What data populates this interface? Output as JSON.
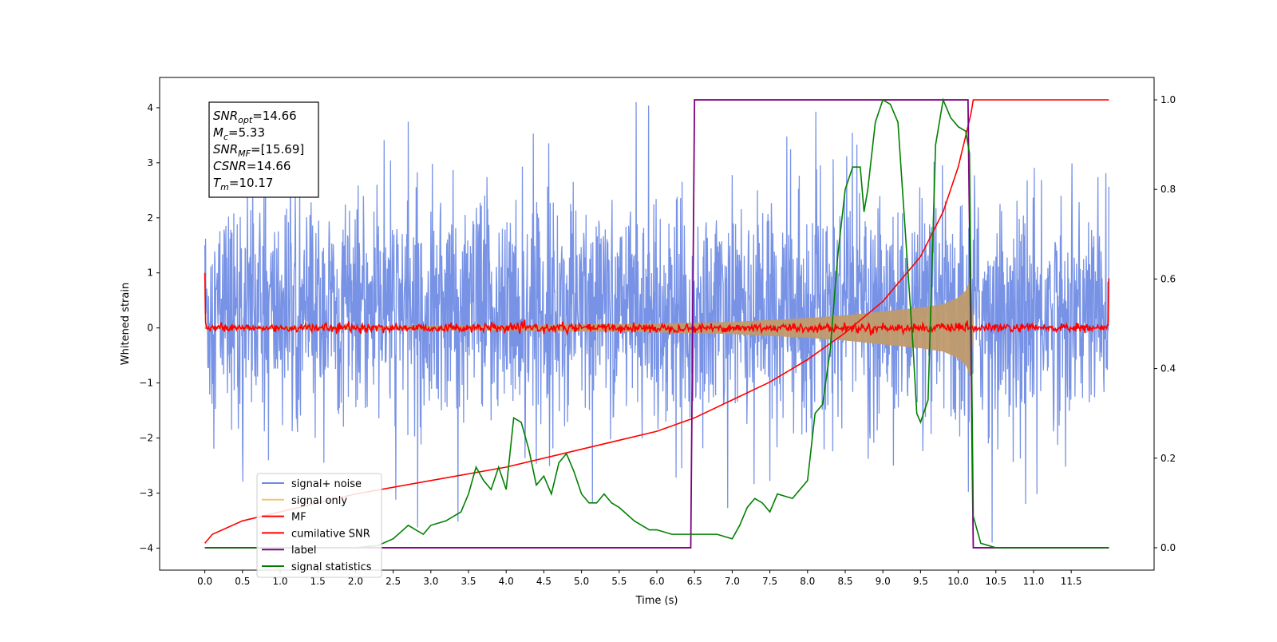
{
  "chart_data": {
    "type": "line",
    "xlabel": "Time (s)",
    "ylabel": "Whitened strain",
    "ylabel_right": "",
    "xlim": [
      -0.6,
      12.6
    ],
    "ylim_left": [
      -4.4,
      4.55
    ],
    "ylim_right": [
      -0.05,
      1.05
    ],
    "x_ticks": [
      "0.0",
      "0.5",
      "1.0",
      "1.5",
      "2.0",
      "2.5",
      "3.0",
      "3.5",
      "4.0",
      "4.5",
      "5.0",
      "5.5",
      "6.0",
      "6.5",
      "7.0",
      "7.5",
      "8.0",
      "8.5",
      "9.0",
      "9.5",
      "10.0",
      "10.5",
      "11.0",
      "11.5"
    ],
    "y_ticks_left": [
      "4",
      "3",
      "2",
      "1",
      "0",
      "−1",
      "−2",
      "−3",
      "−4"
    ],
    "y_ticks_right": [
      "1.0",
      "0.8",
      "0.6",
      "0.4",
      "0.2",
      "0.0"
    ],
    "grid": false,
    "legend_position": "lower-left",
    "info_box": {
      "lines": [
        {
          "sym": "SNR",
          "sub": "opt",
          "val": "=14.66"
        },
        {
          "sym": "M",
          "sub": "c",
          "val": "=5.33"
        },
        {
          "sym": "SNR",
          "sub": "MF",
          "val": "=[15.69]"
        },
        {
          "sym": "CSNR",
          "sub": "",
          "val": "=14.66"
        },
        {
          "sym": "T",
          "sub": "m",
          "val": "=10.17"
        }
      ]
    },
    "series": [
      {
        "name": "signal+ noise",
        "color": "#6c8ae4",
        "axis": "left",
        "description_range": [
          0.0,
          12.0
        ],
        "amplitude_envelope": [
          -3.9,
          4.1
        ]
      },
      {
        "name": "signal only",
        "color": "#f5c36b",
        "axis": "left",
        "envelope_points": [
          [
            0.0,
            0.02
          ],
          [
            2.0,
            0.03
          ],
          [
            4.0,
            0.05
          ],
          [
            6.0,
            0.08
          ],
          [
            7.0,
            0.11
          ],
          [
            8.0,
            0.18
          ],
          [
            8.5,
            0.23
          ],
          [
            9.0,
            0.3
          ],
          [
            9.5,
            0.37
          ],
          [
            9.8,
            0.43
          ],
          [
            10.0,
            0.55
          ],
          [
            10.1,
            0.68
          ],
          [
            10.17,
            0.9
          ],
          [
            10.2,
            0.0
          ]
        ]
      },
      {
        "name": "MF",
        "color": "#ff0000",
        "axis": "left",
        "description_range": [
          0.0,
          12.0
        ],
        "noise_level": 0.08
      },
      {
        "name": "cumilative SNR",
        "color": "#ff0000",
        "axis": "right",
        "points": [
          [
            0.0,
            0.01
          ],
          [
            0.1,
            0.03
          ],
          [
            0.5,
            0.06
          ],
          [
            1.0,
            0.08
          ],
          [
            2.0,
            0.12
          ],
          [
            3.0,
            0.15
          ],
          [
            4.0,
            0.18
          ],
          [
            5.0,
            0.22
          ],
          [
            6.0,
            0.26
          ],
          [
            6.5,
            0.29
          ],
          [
            7.0,
            0.33
          ],
          [
            7.5,
            0.37
          ],
          [
            8.0,
            0.42
          ],
          [
            8.5,
            0.48
          ],
          [
            9.0,
            0.55
          ],
          [
            9.5,
            0.65
          ],
          [
            9.8,
            0.75
          ],
          [
            10.0,
            0.85
          ],
          [
            10.1,
            0.92
          ],
          [
            10.17,
            0.97
          ],
          [
            10.2,
            1.0
          ],
          [
            12.0,
            1.0
          ]
        ]
      },
      {
        "name": "label",
        "color": "#800080",
        "axis": "right",
        "points": [
          [
            0.0,
            0.0
          ],
          [
            6.45,
            0.0
          ],
          [
            6.5,
            1.0
          ],
          [
            10.13,
            1.0
          ],
          [
            10.2,
            0.0
          ],
          [
            12.0,
            0.0
          ]
        ]
      },
      {
        "name": "signal statistics",
        "color": "#008000",
        "axis": "right",
        "points": [
          [
            0.0,
            0.0
          ],
          [
            0.5,
            0.0
          ],
          [
            1.0,
            0.0
          ],
          [
            1.5,
            0.0
          ],
          [
            2.0,
            0.0
          ],
          [
            2.3,
            0.005
          ],
          [
            2.5,
            0.02
          ],
          [
            2.7,
            0.05
          ],
          [
            2.8,
            0.04
          ],
          [
            2.9,
            0.03
          ],
          [
            3.0,
            0.05
          ],
          [
            3.2,
            0.06
          ],
          [
            3.4,
            0.08
          ],
          [
            3.5,
            0.12
          ],
          [
            3.6,
            0.18
          ],
          [
            3.7,
            0.15
          ],
          [
            3.8,
            0.13
          ],
          [
            3.9,
            0.18
          ],
          [
            4.0,
            0.13
          ],
          [
            4.1,
            0.29
          ],
          [
            4.2,
            0.28
          ],
          [
            4.3,
            0.22
          ],
          [
            4.4,
            0.14
          ],
          [
            4.5,
            0.16
          ],
          [
            4.6,
            0.12
          ],
          [
            4.7,
            0.19
          ],
          [
            4.8,
            0.21
          ],
          [
            4.9,
            0.17
          ],
          [
            5.0,
            0.12
          ],
          [
            5.1,
            0.1
          ],
          [
            5.2,
            0.1
          ],
          [
            5.3,
            0.12
          ],
          [
            5.4,
            0.1
          ],
          [
            5.5,
            0.09
          ],
          [
            5.7,
            0.06
          ],
          [
            5.9,
            0.04
          ],
          [
            6.0,
            0.04
          ],
          [
            6.2,
            0.03
          ],
          [
            6.4,
            0.03
          ],
          [
            6.6,
            0.03
          ],
          [
            6.8,
            0.03
          ],
          [
            7.0,
            0.02
          ],
          [
            7.1,
            0.05
          ],
          [
            7.2,
            0.09
          ],
          [
            7.3,
            0.11
          ],
          [
            7.4,
            0.1
          ],
          [
            7.5,
            0.08
          ],
          [
            7.6,
            0.12
          ],
          [
            7.8,
            0.11
          ],
          [
            8.0,
            0.15
          ],
          [
            8.1,
            0.3
          ],
          [
            8.2,
            0.32
          ],
          [
            8.3,
            0.44
          ],
          [
            8.4,
            0.65
          ],
          [
            8.5,
            0.8
          ],
          [
            8.6,
            0.85
          ],
          [
            8.7,
            0.85
          ],
          [
            8.75,
            0.75
          ],
          [
            8.8,
            0.8
          ],
          [
            8.9,
            0.95
          ],
          [
            9.0,
            1.0
          ],
          [
            9.1,
            0.99
          ],
          [
            9.2,
            0.95
          ],
          [
            9.3,
            0.7
          ],
          [
            9.4,
            0.45
          ],
          [
            9.45,
            0.3
          ],
          [
            9.5,
            0.28
          ],
          [
            9.6,
            0.33
          ],
          [
            9.7,
            0.9
          ],
          [
            9.8,
            1.0
          ],
          [
            9.9,
            0.96
          ],
          [
            10.0,
            0.94
          ],
          [
            10.1,
            0.93
          ],
          [
            10.15,
            0.88
          ],
          [
            10.2,
            0.07
          ],
          [
            10.25,
            0.04
          ],
          [
            10.3,
            0.01
          ],
          [
            10.5,
            0.0
          ],
          [
            12.0,
            0.0
          ]
        ]
      }
    ]
  }
}
